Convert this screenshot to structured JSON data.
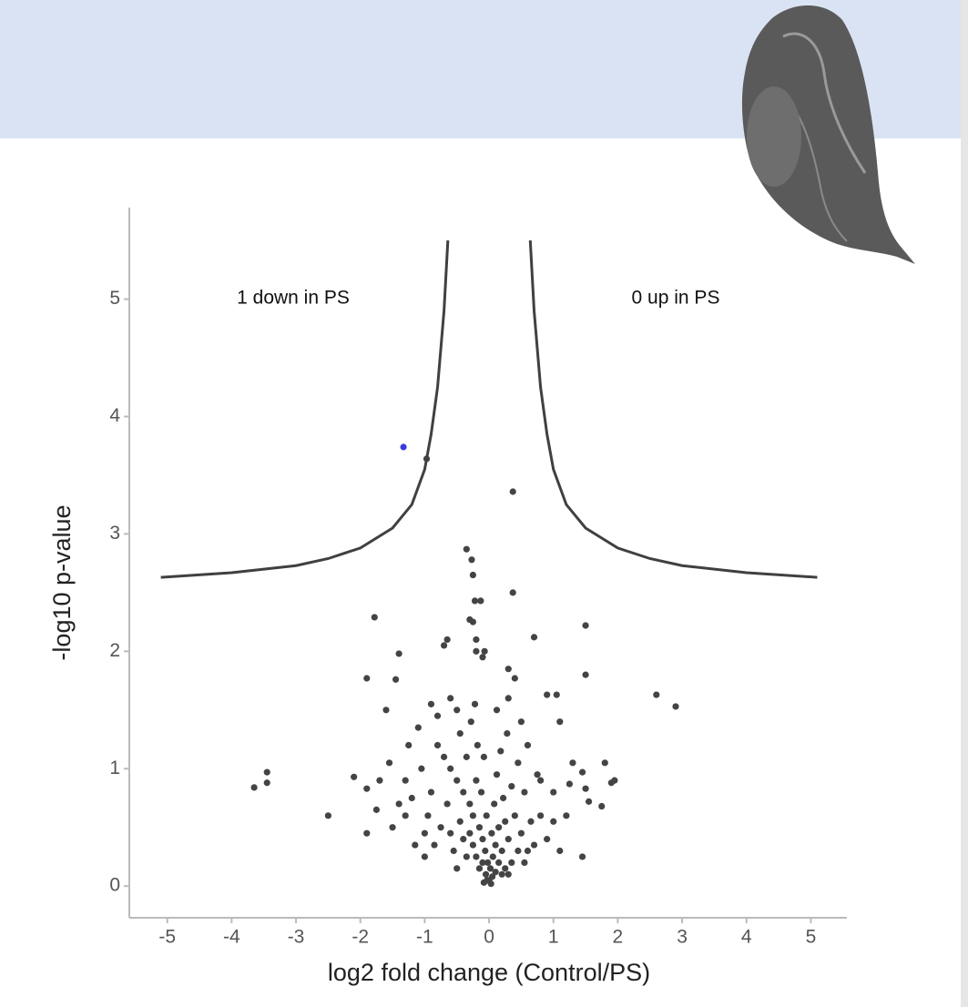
{
  "chart_data": {
    "type": "scatter",
    "x_label": "log2 fold change (Control/PS)",
    "y_label": "-log10 p-value",
    "annotations": [
      "1 down in PS",
      "0 up in PS"
    ],
    "xlim": [
      -5.59,
      5.56
    ],
    "ylim": [
      -0.27,
      5.78
    ],
    "xticks": [
      -5,
      -4,
      -3,
      -2,
      -1,
      0,
      1,
      2,
      3,
      4,
      5
    ],
    "yticks": [
      0,
      1,
      2,
      3,
      4,
      5
    ],
    "series": [
      {
        "style": "points",
        "color": "#444444",
        "x": [
          -3.65,
          -3.45,
          -3.45,
          -2.5,
          -2.1,
          -1.9,
          -1.9,
          -1.9,
          -1.78,
          -1.75,
          -1.6,
          -1.55,
          -1.5,
          -1.45,
          -1.4,
          -0.97,
          0.37,
          0.37,
          -0.35,
          -0.27,
          -0.25,
          -0.22,
          -0.13,
          -0.3,
          -0.25,
          -0.2,
          -0.65,
          -0.7,
          -0.07,
          -0.2,
          -0.1,
          0.3,
          0.4,
          0.3,
          0.7,
          1.5,
          1.5,
          0.9,
          1.05,
          2.6,
          2.9,
          1.8,
          1.95,
          1.9,
          1.3,
          1.45,
          1.25,
          1.75,
          1.55,
          1.5,
          1.1,
          1.45,
          1.0,
          0.8,
          -0.6,
          -0.9,
          -0.8,
          -0.5,
          -1.1,
          -1.25,
          -1.3,
          -1.2,
          -1.0,
          -1.0,
          -1.4,
          -1.15,
          -0.8,
          -0.7,
          -0.6,
          -0.5,
          -0.45,
          -0.4,
          -0.35,
          -0.3,
          -0.28,
          -0.25,
          -0.2,
          -0.18,
          -0.15,
          -0.12,
          -0.1,
          -0.08,
          -0.06,
          -0.04,
          -0.02,
          0,
          0.02,
          0.04,
          0.06,
          0.08,
          0.1,
          0.12,
          0.15,
          0.18,
          0.2,
          0.22,
          0.25,
          0.28,
          0.3,
          0.35,
          0.4,
          0.45,
          0.5,
          0.55,
          0.6,
          0.65,
          0.7,
          0.75,
          0.8,
          0.9,
          1.0,
          -0.9,
          -0.95,
          -1.05,
          -0.85,
          -0.75,
          -0.65,
          -0.55,
          -0.45,
          -0.35,
          -0.25,
          -0.15,
          -0.05,
          0.05,
          0.15,
          0.25,
          0.35,
          0.45,
          0.55,
          -0.6,
          -0.5,
          -0.4,
          -0.3,
          -0.2,
          -0.1,
          0.1,
          0.2,
          0.3,
          -0.08,
          0.03,
          -0.03,
          0.6,
          0.5,
          -0.22,
          0.12,
          -1.3,
          -1.7,
          1.2,
          1.1
        ],
        "values": [
          0.84,
          0.97,
          0.88,
          0.6,
          0.93,
          0.83,
          0.45,
          1.77,
          2.29,
          0.65,
          1.5,
          1.05,
          0.5,
          1.76,
          1.98,
          3.64,
          3.36,
          2.5,
          2.87,
          2.78,
          2.65,
          2.43,
          2.43,
          2.27,
          2.25,
          2.1,
          2.1,
          2.05,
          2.0,
          2.0,
          1.95,
          1.85,
          1.77,
          1.6,
          2.12,
          2.22,
          1.8,
          1.63,
          1.63,
          1.63,
          1.53,
          1.05,
          0.9,
          0.88,
          1.05,
          0.97,
          0.87,
          0.68,
          0.72,
          0.83,
          1.4,
          0.25,
          0.8,
          0.9,
          1.6,
          1.55,
          1.45,
          1.5,
          1.35,
          1.2,
          0.9,
          0.75,
          0.45,
          0.25,
          0.7,
          0.35,
          1.2,
          1.1,
          1.0,
          0.9,
          1.3,
          0.8,
          1.1,
          0.7,
          1.4,
          0.6,
          0.9,
          1.2,
          0.5,
          0.8,
          0.4,
          1.1,
          0.3,
          0.6,
          0.2,
          0.05,
          0.15,
          0.45,
          0.25,
          0.7,
          0.35,
          0.95,
          0.5,
          1.15,
          0.3,
          0.75,
          0.55,
          1.3,
          0.4,
          0.85,
          0.6,
          1.05,
          0.45,
          0.8,
          1.2,
          0.55,
          0.35,
          0.95,
          0.6,
          0.4,
          0.55,
          0.8,
          0.6,
          1.0,
          0.35,
          0.5,
          0.7,
          0.3,
          0.55,
          0.25,
          0.35,
          0.15,
          0.1,
          0.08,
          0.2,
          0.15,
          0.2,
          0.3,
          0.2,
          0.45,
          0.15,
          0.4,
          0.45,
          0.25,
          0.2,
          0.12,
          0.1,
          0.1,
          0.03,
          0.02,
          0.05,
          0.3,
          1.4,
          1.55,
          1.5,
          0.6,
          0.9,
          0.6,
          0.3
        ]
      },
      {
        "style": "points",
        "color": "#3b3bdc",
        "x": [
          -1.33
        ],
        "values": [
          3.74
        ]
      },
      {
        "style": "line",
        "color": "#404040",
        "x": [
          -5.1,
          -4,
          -3,
          -2.5,
          -2,
          -1.5,
          -1.2,
          -1.0,
          -0.9,
          -0.8,
          -0.7,
          -0.64
        ],
        "values": [
          2.63,
          2.67,
          2.73,
          2.79,
          2.88,
          3.05,
          3.25,
          3.55,
          3.85,
          4.25,
          4.9,
          5.5
        ]
      },
      {
        "style": "line",
        "color": "#404040",
        "x": [
          0.64,
          0.7,
          0.8,
          0.9,
          1.0,
          1.2,
          1.5,
          2,
          2.5,
          3,
          4,
          5.1
        ],
        "values": [
          5.5,
          4.9,
          4.25,
          3.85,
          3.55,
          3.25,
          3.05,
          2.88,
          2.79,
          2.73,
          2.67,
          2.63
        ]
      }
    ]
  }
}
